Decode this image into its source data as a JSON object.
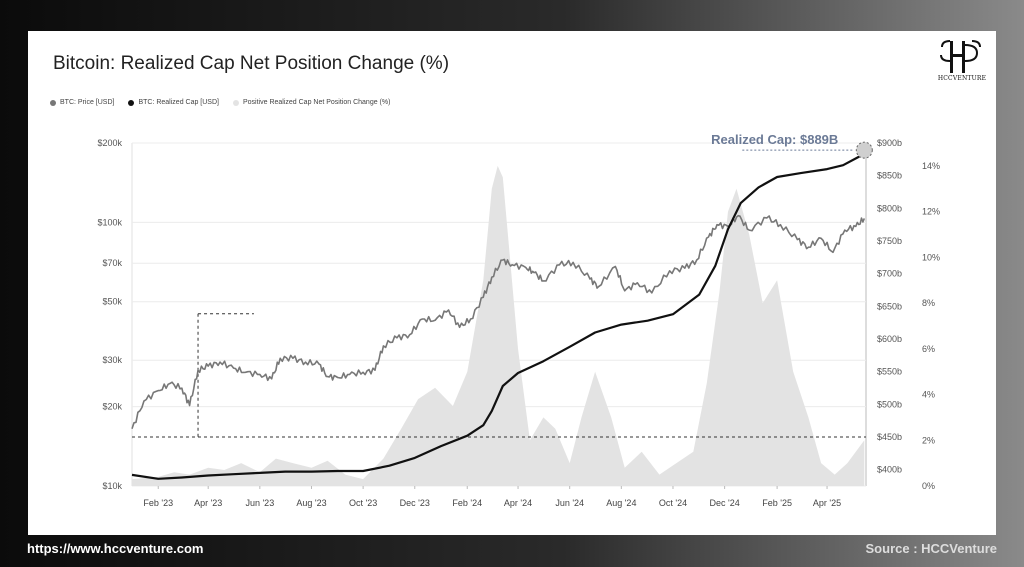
{
  "header": {
    "title": "Bitcoin: Realized Cap Net Position Change (%)",
    "logo_text": "HCCVENTURE"
  },
  "footer": {
    "url": "https://www.hccventure.com",
    "source": "Source : HCCVenture"
  },
  "colors": {
    "price": "#777777",
    "realized_cap": "#111111",
    "position_change": "#e6e6e6"
  },
  "chart_data": {
    "type": "line",
    "title": "Bitcoin: Realized Cap Net Position Change (%)",
    "legend": [
      "BTC: Price [USD]",
      "BTC: Realized Cap [USD]",
      "Positive Realized Cap Net Position Change (%)"
    ],
    "legend_position": "top-left",
    "x_ticks": [
      "Feb '23",
      "Apr '23",
      "Jun '23",
      "Aug '23",
      "Oct '23",
      "Dec '23",
      "Feb '24",
      "Apr '24",
      "Jun '24",
      "Aug '24",
      "Oct '24",
      "Dec '24",
      "Feb '25",
      "Apr '25"
    ],
    "y_left": {
      "scale": "log",
      "ticks": [
        "$10k",
        "$20k",
        "$30k",
        "$50k",
        "$70k",
        "$100k",
        "$200k"
      ],
      "tick_values": [
        10000,
        20000,
        30000,
        50000,
        70000,
        100000,
        200000
      ],
      "range": [
        10000,
        200000
      ]
    },
    "y_right1": {
      "ticks": [
        "$400b",
        "$450b",
        "$500b",
        "$550b",
        "$600b",
        "$650b",
        "$700b",
        "$750b",
        "$800b",
        "$850b",
        "$900b"
      ],
      "tick_values": [
        400,
        450,
        500,
        550,
        600,
        650,
        700,
        750,
        800,
        850,
        900
      ],
      "range": [
        375,
        900
      ]
    },
    "y_right2": {
      "ticks": [
        "0%",
        "2%",
        "4%",
        "6%",
        "8%",
        "10%",
        "12%",
        "14%"
      ],
      "tick_values": [
        0,
        2,
        4,
        6,
        8,
        10,
        12,
        14
      ],
      "range": [
        0,
        15
      ]
    },
    "annotation": "Realized Cap: $889B",
    "grid": true,
    "series": [
      {
        "name": "BTC: Price [USD]",
        "x": [
          "2023-01-01",
          "2023-01-15",
          "2023-02-01",
          "2023-02-15",
          "2023-03-01",
          "2023-03-10",
          "2023-03-20",
          "2023-04-01",
          "2023-04-15",
          "2023-05-01",
          "2023-05-15",
          "2023-06-01",
          "2023-06-15",
          "2023-06-25",
          "2023-07-10",
          "2023-07-25",
          "2023-08-10",
          "2023-08-20",
          "2023-09-01",
          "2023-09-15",
          "2023-10-01",
          "2023-10-15",
          "2023-10-25",
          "2023-11-10",
          "2023-11-25",
          "2023-12-10",
          "2023-12-25",
          "2024-01-10",
          "2024-01-23",
          "2024-02-05",
          "2024-02-20",
          "2024-03-01",
          "2024-03-14",
          "2024-03-25",
          "2024-04-10",
          "2024-04-20",
          "2024-05-01",
          "2024-05-20",
          "2024-06-05",
          "2024-06-25",
          "2024-07-05",
          "2024-07-25",
          "2024-08-05",
          "2024-08-20",
          "2024-09-06",
          "2024-09-27",
          "2024-10-15",
          "2024-10-29",
          "2024-11-12",
          "2024-11-22",
          "2024-12-05",
          "2024-12-17",
          "2024-12-30",
          "2025-01-20",
          "2025-02-05",
          "2025-02-25",
          "2025-03-10",
          "2025-03-25",
          "2025-04-08",
          "2025-04-22",
          "2025-05-05",
          "2025-05-15"
        ],
        "values": [
          16500,
          21000,
          23000,
          24500,
          23500,
          20200,
          27500,
          28500,
          29500,
          28000,
          27000,
          26500,
          25500,
          30500,
          30500,
          29500,
          29000,
          26000,
          25800,
          26500,
          27000,
          27500,
          34000,
          36500,
          37500,
          43000,
          42500,
          46500,
          40000,
          43000,
          52000,
          62000,
          72000,
          69000,
          67500,
          64500,
          60000,
          69000,
          70500,
          61000,
          57000,
          68000,
          55000,
          59000,
          54000,
          65500,
          67000,
          72000,
          88000,
          98000,
          96500,
          106000,
          93500,
          104000,
          98000,
          86000,
          80500,
          87000,
          77000,
          93500,
          96500,
          103500
        ]
      },
      {
        "name": "BTC: Realized Cap [USD]",
        "x": [
          "2023-01-01",
          "2023-02-01",
          "2023-03-01",
          "2023-04-01",
          "2023-05-01",
          "2023-06-01",
          "2023-07-01",
          "2023-08-01",
          "2023-09-01",
          "2023-10-01",
          "2023-11-01",
          "2023-12-01",
          "2024-01-01",
          "2024-02-01",
          "2024-02-20",
          "2024-03-01",
          "2024-03-14",
          "2024-04-01",
          "2024-05-01",
          "2024-06-01",
          "2024-07-01",
          "2024-08-01",
          "2024-09-01",
          "2024-10-01",
          "2024-11-01",
          "2024-11-20",
          "2024-12-05",
          "2024-12-20",
          "2025-01-10",
          "2025-02-01",
          "2025-03-01",
          "2025-04-01",
          "2025-04-20",
          "2025-05-10",
          "2025-05-15"
        ],
        "values": [
          392,
          386,
          388,
          391,
          393,
          395,
          397,
          397,
          398,
          398,
          406,
          418,
          436,
          452,
          468,
          490,
          528,
          548,
          566,
          588,
          610,
          622,
          628,
          638,
          668,
          712,
          768,
          808,
          832,
          848,
          854,
          860,
          866,
          880,
          889
        ]
      },
      {
        "name": "Positive Realized Cap Net Position Change (%)",
        "x": [
          "2023-01-01",
          "2023-02-01",
          "2023-02-20",
          "2023-03-10",
          "2023-04-01",
          "2023-04-20",
          "2023-05-10",
          "2023-06-01",
          "2023-06-20",
          "2023-07-10",
          "2023-08-01",
          "2023-08-20",
          "2023-09-10",
          "2023-10-01",
          "2023-10-25",
          "2023-11-15",
          "2023-12-05",
          "2023-12-25",
          "2024-01-15",
          "2024-02-01",
          "2024-02-20",
          "2024-03-01",
          "2024-03-08",
          "2024-03-14",
          "2024-03-20",
          "2024-04-01",
          "2024-04-15",
          "2024-05-01",
          "2024-05-15",
          "2024-06-01",
          "2024-06-15",
          "2024-07-01",
          "2024-07-20",
          "2024-08-05",
          "2024-08-25",
          "2024-09-15",
          "2024-10-05",
          "2024-10-25",
          "2024-11-10",
          "2024-11-25",
          "2024-12-05",
          "2024-12-15",
          "2024-12-30",
          "2025-01-15",
          "2025-02-01",
          "2025-02-20",
          "2025-03-10",
          "2025-03-25",
          "2025-04-10",
          "2025-04-25",
          "2025-05-15"
        ],
        "values": [
          0.3,
          0.4,
          0.6,
          0.5,
          0.8,
          0.7,
          1.0,
          0.6,
          1.2,
          1.0,
          0.8,
          1.1,
          0.5,
          0.3,
          1.2,
          2.5,
          3.8,
          4.3,
          3.5,
          5.0,
          9.0,
          13.0,
          14.0,
          13.5,
          11.0,
          6.0,
          2.0,
          3.0,
          2.5,
          1.0,
          3.0,
          5.0,
          3.0,
          0.8,
          1.5,
          0.5,
          1.0,
          1.5,
          4.5,
          8.5,
          12.0,
          13.0,
          11.0,
          8.0,
          9.0,
          5.0,
          3.0,
          1.0,
          0.5,
          1.0,
          2.0
        ]
      }
    ],
    "annotation_lines": [
      {
        "y_right1": 450,
        "style": "dashed"
      },
      {
        "x": "2023-03-20",
        "style": "dashed"
      },
      {
        "y_left": 45000,
        "style": "dashed"
      }
    ]
  }
}
